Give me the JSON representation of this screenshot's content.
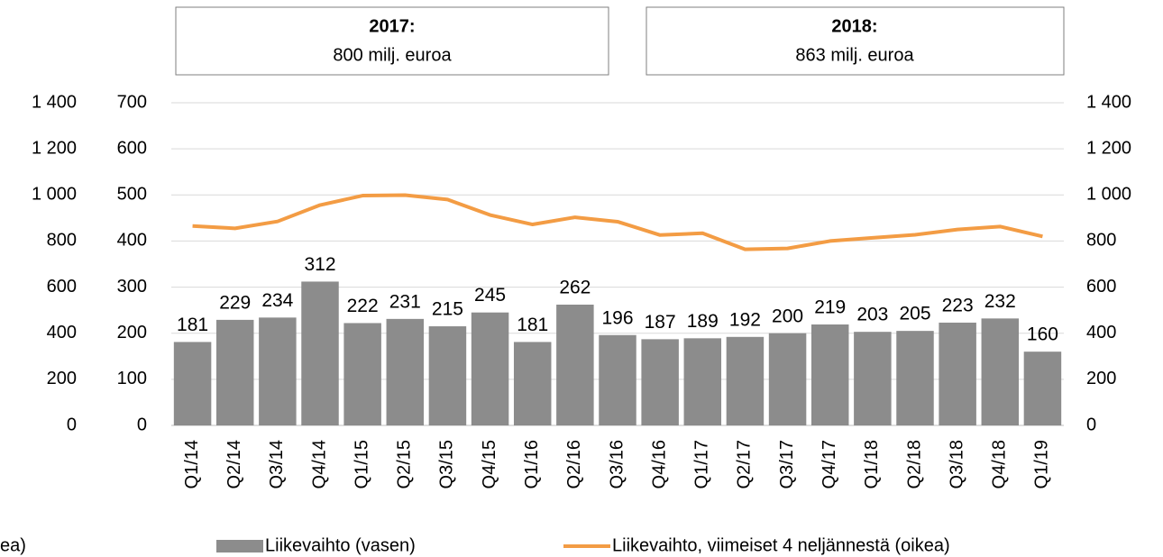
{
  "chart_data": {
    "type": "bar",
    "categories": [
      "Q1/14",
      "Q2/14",
      "Q3/14",
      "Q4/14",
      "Q1/15",
      "Q2/15",
      "Q3/15",
      "Q4/15",
      "Q1/16",
      "Q2/16",
      "Q3/16",
      "Q4/16",
      "Q1/17",
      "Q2/17",
      "Q3/17",
      "Q4/17",
      "Q1/18",
      "Q2/18",
      "Q3/18",
      "Q4/18",
      "Q1/19"
    ],
    "series": [
      {
        "name": "Liikevaihto (vasen)",
        "type": "bar",
        "color": "#8c8c8c",
        "axis": "y",
        "values": [
          181,
          229,
          234,
          312,
          222,
          231,
          215,
          245,
          181,
          262,
          196,
          187,
          189,
          192,
          200,
          219,
          203,
          205,
          223,
          232,
          160
        ]
      },
      {
        "name": "Liikevaihto, viimeiset 4 neljännestä (oikea)",
        "type": "line",
        "color": "#f39c44",
        "axis": "y2",
        "values": [
          865,
          855,
          885,
          956,
          997,
          999,
          980,
          913,
          872,
          903,
          884,
          826,
          834,
          764,
          768,
          800,
          814,
          827,
          850,
          863,
          820
        ]
      }
    ],
    "ylim": [
      0,
      700
    ],
    "yticks": [
      0,
      100,
      200,
      300,
      400,
      500,
      600,
      700
    ],
    "y2lim": [
      0,
      1400
    ],
    "y2ticks": [
      0,
      200,
      400,
      600,
      800,
      {
        "value": 1000,
        "label": "1 000"
      },
      {
        "value": 1200,
        "label": "1 200"
      },
      {
        "value": 1400,
        "label": "1 400"
      }
    ],
    "y3lim": [
      0,
      1400
    ],
    "y3ticks": [
      0,
      200,
      400,
      600,
      800,
      {
        "value": 1000,
        "label": "1 000"
      },
      {
        "value": 1200,
        "label": "1 200"
      },
      {
        "value": 1400,
        "label": "1 400"
      }
    ],
    "grid": true,
    "annotations": [
      {
        "title": "2017:",
        "text": "800 milj. euroa"
      },
      {
        "title": "2018:",
        "text": "863 milj. euroa"
      }
    ],
    "cropped_text": "ea)"
  }
}
